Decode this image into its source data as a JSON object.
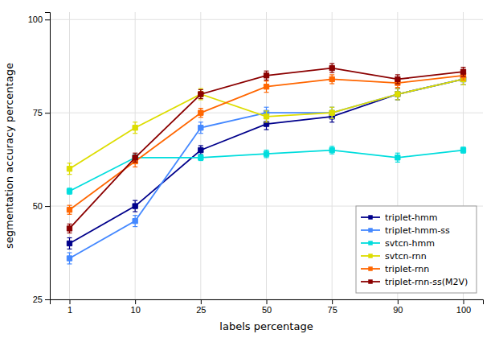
{
  "chart_data": {
    "type": "line",
    "xlabel": "labels percentage",
    "ylabel": "segmentation accuracy percentage",
    "categories": [
      "1",
      "10",
      "25",
      "50",
      "75",
      "90",
      "100"
    ],
    "series": [
      {
        "name": "triplet-hmm",
        "color": "#00008B",
        "marker": "square",
        "values": [
          40,
          50,
          65,
          72,
          74,
          80,
          84
        ],
        "errors": [
          1.5,
          1.5,
          1.2,
          1.5,
          1.5,
          1.5,
          1.5
        ]
      },
      {
        "name": "triplet-hmm-ss",
        "color": "#4488FF",
        "marker": "square",
        "values": [
          36,
          46,
          71,
          75,
          75,
          80,
          84
        ],
        "errors": [
          1.5,
          1.5,
          1.5,
          1.5,
          1.5,
          1.5,
          1.5
        ]
      },
      {
        "name": "svtcn-hmm",
        "color": "#00DDDD",
        "marker": "square",
        "values": [
          54,
          63,
          63,
          64,
          65,
          63,
          65
        ],
        "errors": [
          0.8,
          0.8,
          0.8,
          1.0,
          1.0,
          1.2,
          0.8
        ]
      },
      {
        "name": "svtcn-rnn",
        "color": "#DDDD00",
        "marker": "square",
        "values": [
          60,
          71,
          80,
          74,
          75,
          80,
          84
        ],
        "errors": [
          1.5,
          1.5,
          1.5,
          1.5,
          1.5,
          1.5,
          1.5
        ]
      },
      {
        "name": "triplet-rnn",
        "color": "#FF6600",
        "marker": "square",
        "values": [
          49,
          62,
          75,
          82,
          84,
          83,
          85
        ],
        "errors": [
          1.2,
          1.5,
          1.2,
          1.5,
          1.2,
          1.2,
          1.2
        ]
      },
      {
        "name": "triplet-rnn-ss(M2V)",
        "color": "#8B0000",
        "marker": "square",
        "values": [
          44,
          63,
          80,
          85,
          87,
          84,
          86
        ],
        "errors": [
          1.2,
          1.2,
          1.2,
          1.2,
          1.2,
          1.2,
          1.2
        ]
      }
    ],
    "ylim": [
      25,
      102
    ],
    "yticks": [
      25,
      50,
      75,
      100
    ],
    "grid": true,
    "legend": "lower right"
  }
}
